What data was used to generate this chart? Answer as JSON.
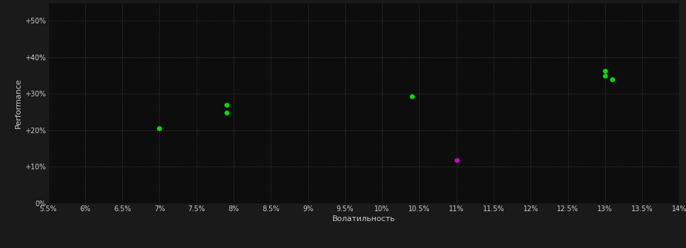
{
  "background_color": "#1a1a1a",
  "plot_bg_color": "#0d0d0d",
  "grid_color": "#555555",
  "text_color": "#cccccc",
  "xlabel": "Волатильность",
  "ylabel": "Performance",
  "xlim": [
    0.055,
    0.14
  ],
  "ylim": [
    0.0,
    0.55
  ],
  "xticks": [
    0.055,
    0.06,
    0.065,
    0.07,
    0.075,
    0.08,
    0.085,
    0.09,
    0.095,
    0.1,
    0.105,
    0.11,
    0.115,
    0.12,
    0.125,
    0.13,
    0.135,
    0.14
  ],
  "yticks": [
    0.0,
    0.1,
    0.2,
    0.3,
    0.4,
    0.5
  ],
  "ytick_labels": [
    "0%",
    "+10%",
    "+20%",
    "+30%",
    "+40%",
    "+50%"
  ],
  "xtick_labels": [
    "5.5%",
    "6%",
    "6.5%",
    "7%",
    "7.5%",
    "8%",
    "8.5%",
    "9%",
    "9.5%",
    "10%",
    "10.5%",
    "11%",
    "11.5%",
    "12%",
    "12.5%",
    "13%",
    "13.5%",
    "14%"
  ],
  "green_points": [
    [
      0.07,
      0.205
    ],
    [
      0.079,
      0.27
    ],
    [
      0.079,
      0.248
    ],
    [
      0.104,
      0.293
    ],
    [
      0.13,
      0.362
    ],
    [
      0.13,
      0.35
    ],
    [
      0.131,
      0.34
    ]
  ],
  "magenta_points": [
    [
      0.11,
      0.118
    ]
  ],
  "green_color": "#00dd00",
  "magenta_color": "#cc00cc",
  "marker_size": 5
}
